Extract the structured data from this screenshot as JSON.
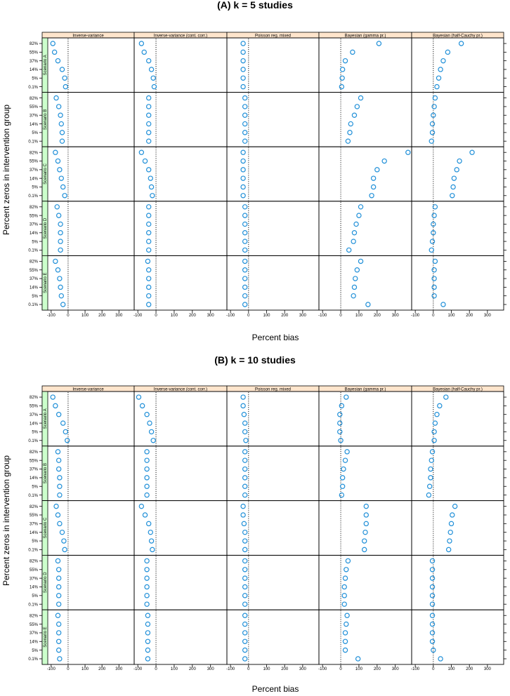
{
  "figure": {
    "xlabel": "Percent bias",
    "ylabel": "Percent zeros in intervention group",
    "point_color": "#1f8fd8",
    "top_strip_color": "#ffe5cc",
    "left_strip_color": "#ccffcc"
  },
  "chart_data": [
    {
      "type": "scatter",
      "title": "(A) k = 5 studies",
      "xlabel": "Percent bias",
      "ylabel": "Percent zeros in intervention group",
      "xlim": [
        -120,
        390
      ],
      "x_ticks": [
        "-100",
        "0",
        "100",
        "200",
        "300"
      ],
      "categories": [
        "82%",
        "55%",
        "37%",
        "14%",
        "5%",
        "0.1%"
      ],
      "methods": [
        "Inverse-variance",
        "Inverse-variance (cont. corr.)",
        "Poisson reg. mixed",
        "Bayesian (gamma pr.)",
        "Bayesian (half-Cauchy pr.)"
      ],
      "scenarios": [
        "Scenario A",
        "Scenario B",
        "Scenario C",
        "Scenario D",
        "Scenario E"
      ],
      "reference_line_x": 0,
      "values": [
        [
          [
            -90,
            -80,
            -60,
            -35,
            -20,
            -15
          ],
          [
            -80,
            -65,
            -40,
            -25,
            -15,
            -10
          ],
          [
            -30,
            -30,
            -30,
            -30,
            -30,
            -30
          ],
          [
            210,
            65,
            25,
            10,
            8,
            5
          ],
          [
            155,
            80,
            55,
            40,
            30,
            20
          ]
        ],
        [
          [
            -70,
            -55,
            -45,
            -40,
            -35,
            -35
          ],
          [
            -40,
            -40,
            -40,
            -40,
            -40,
            -40
          ],
          [
            -20,
            -20,
            -20,
            -20,
            -20,
            -20
          ],
          [
            110,
            90,
            75,
            55,
            50,
            40
          ],
          [
            10,
            5,
            0,
            -5,
            -5,
            -10
          ]
        ],
        [
          [
            -75,
            -60,
            -50,
            -40,
            -30,
            -20
          ],
          [
            -80,
            -60,
            -40,
            -30,
            -25,
            -20
          ],
          [
            -30,
            -30,
            -30,
            -30,
            -30,
            -30
          ],
          [
            370,
            240,
            200,
            180,
            180,
            170
          ],
          [
            215,
            145,
            130,
            115,
            110,
            105
          ]
        ],
        [
          [
            -65,
            -55,
            -45,
            -45,
            -45,
            -45
          ],
          [
            -40,
            -40,
            -40,
            -40,
            -40,
            -40
          ],
          [
            -20,
            -20,
            -20,
            -20,
            -20,
            -20
          ],
          [
            110,
            100,
            85,
            75,
            70,
            45
          ],
          [
            10,
            5,
            0,
            0,
            -5,
            -10
          ]
        ],
        [
          [
            -75,
            -60,
            -50,
            -45,
            -40,
            -30
          ],
          [
            -45,
            -40,
            -40,
            -40,
            -40,
            -40
          ],
          [
            -20,
            -20,
            -20,
            -20,
            -20,
            -20
          ],
          [
            110,
            90,
            80,
            75,
            70,
            150
          ],
          [
            10,
            5,
            5,
            5,
            5,
            55
          ]
        ]
      ]
    },
    {
      "type": "scatter",
      "title": "(B) k = 10 studies",
      "xlabel": "Percent bias",
      "ylabel": "Percent zeros in intervention group",
      "xlim": [
        -120,
        390
      ],
      "x_ticks": [
        "-100",
        "0",
        "100",
        "200",
        "300"
      ],
      "categories": [
        "82%",
        "55%",
        "37%",
        "14%",
        "5%",
        "0.1%"
      ],
      "methods": [
        "Inverse-variance",
        "Inverse-variance (cont. corr.)",
        "Poisson reg. mixed",
        "Bayesian (gamma pr.)",
        "Bayesian (half-Cauchy pr.)"
      ],
      "scenarios": [
        "Scenario A",
        "Scenario B",
        "Scenario C",
        "Scenario D",
        "Scenario E"
      ],
      "reference_line_x": 0,
      "values": [
        [
          [
            -90,
            -75,
            -55,
            -30,
            -15,
            -5
          ],
          [
            -95,
            -75,
            -50,
            -35,
            -25,
            -15
          ],
          [
            -30,
            -30,
            -25,
            -20,
            -20,
            -15
          ],
          [
            30,
            5,
            -5,
            -5,
            -5,
            0
          ],
          [
            70,
            35,
            20,
            10,
            5,
            5
          ]
        ],
        [
          [
            -60,
            -55,
            -55,
            -50,
            -50,
            -50
          ],
          [
            -50,
            -50,
            -50,
            -50,
            -50,
            -50
          ],
          [
            -20,
            -20,
            -20,
            -20,
            -20,
            -20
          ],
          [
            35,
            25,
            15,
            10,
            10,
            5
          ],
          [
            -5,
            -10,
            -15,
            -15,
            -20,
            -25
          ]
        ],
        [
          [
            -70,
            -60,
            -50,
            -35,
            -25,
            -20
          ],
          [
            -80,
            -60,
            -40,
            -30,
            -25,
            -20
          ],
          [
            -30,
            -30,
            -25,
            -20,
            -20,
            -20
          ],
          [
            140,
            140,
            140,
            135,
            130,
            130
          ],
          [
            120,
            105,
            100,
            95,
            90,
            85
          ]
        ],
        [
          [
            -60,
            -55,
            -55,
            -55,
            -55,
            -55
          ],
          [
            -50,
            -50,
            -50,
            -50,
            -50,
            -50
          ],
          [
            -20,
            -20,
            -20,
            -20,
            -20,
            -20
          ],
          [
            40,
            30,
            25,
            20,
            20,
            20
          ],
          [
            -5,
            -5,
            -5,
            -5,
            -5,
            -5
          ]
        ],
        [
          [
            -60,
            -55,
            -55,
            -55,
            -55,
            -50
          ],
          [
            -45,
            -45,
            -45,
            -45,
            -45,
            -45
          ],
          [
            -20,
            -20,
            -20,
            -20,
            -20,
            -20
          ],
          [
            35,
            30,
            25,
            25,
            25,
            95
          ],
          [
            -5,
            -5,
            -5,
            -5,
            0,
            40
          ]
        ]
      ]
    }
  ]
}
